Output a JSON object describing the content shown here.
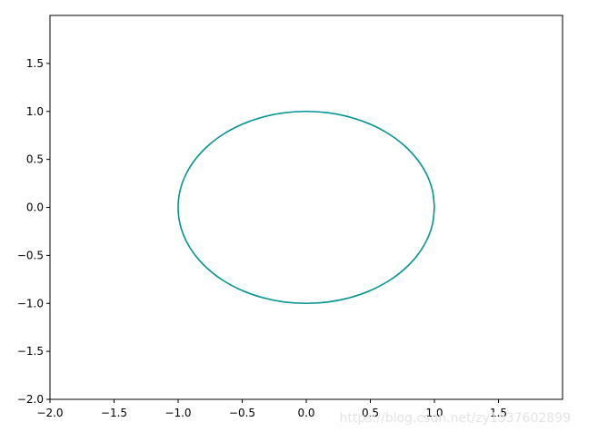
{
  "chart_data": {
    "type": "line",
    "x": [
      1,
      0.985,
      0.94,
      0.866,
      0.766,
      0.643,
      0.5,
      0.342,
      0.174,
      0,
      -0.174,
      -0.342,
      -0.5,
      -0.643,
      -0.766,
      -0.866,
      -0.94,
      -0.985,
      -1,
      -0.985,
      -0.94,
      -0.866,
      -0.766,
      -0.643,
      -0.5,
      -0.342,
      -0.174,
      0,
      0.174,
      0.342,
      0.5,
      0.643,
      0.766,
      0.866,
      0.94,
      0.985,
      1
    ],
    "series": [
      {
        "color": "#009492",
        "values": [
          0,
          0.174,
          0.342,
          0.5,
          0.643,
          0.766,
          0.866,
          0.94,
          0.985,
          1,
          0.985,
          0.94,
          0.866,
          0.766,
          0.643,
          0.5,
          0.342,
          0.174,
          0,
          -0.174,
          -0.342,
          -0.5,
          -0.643,
          -0.766,
          -0.866,
          -0.94,
          -0.985,
          -1,
          -0.985,
          -0.94,
          -0.866,
          -0.766,
          -0.643,
          -0.5,
          -0.342,
          -0.174,
          0
        ]
      }
    ],
    "xlim": [
      -2,
      2
    ],
    "ylim": [
      -2,
      2
    ],
    "xticks": [
      {
        "value": -2,
        "label": "−2.0"
      },
      {
        "value": -1.5,
        "label": "−1.5"
      },
      {
        "value": -1,
        "label": "−1.0"
      },
      {
        "value": -0.5,
        "label": "−0.5"
      },
      {
        "value": 0,
        "label": "0.0"
      },
      {
        "value": 0.5,
        "label": "0.5"
      },
      {
        "value": 1,
        "label": "1.0"
      },
      {
        "value": 1.5,
        "label": "1.5"
      }
    ],
    "yticks": [
      {
        "value": -2,
        "label": "−2.0"
      },
      {
        "value": -1.5,
        "label": "−1.5"
      },
      {
        "value": -1,
        "label": "−1.0"
      },
      {
        "value": -0.5,
        "label": "−0.5"
      },
      {
        "value": 0,
        "label": "0.0"
      },
      {
        "value": 0.5,
        "label": "0.5"
      },
      {
        "value": 1,
        "label": "1.0"
      },
      {
        "value": 1.5,
        "label": "1.5"
      }
    ],
    "grid": false,
    "watermark": "https://blog.csdn.net/zy1337602899"
  }
}
